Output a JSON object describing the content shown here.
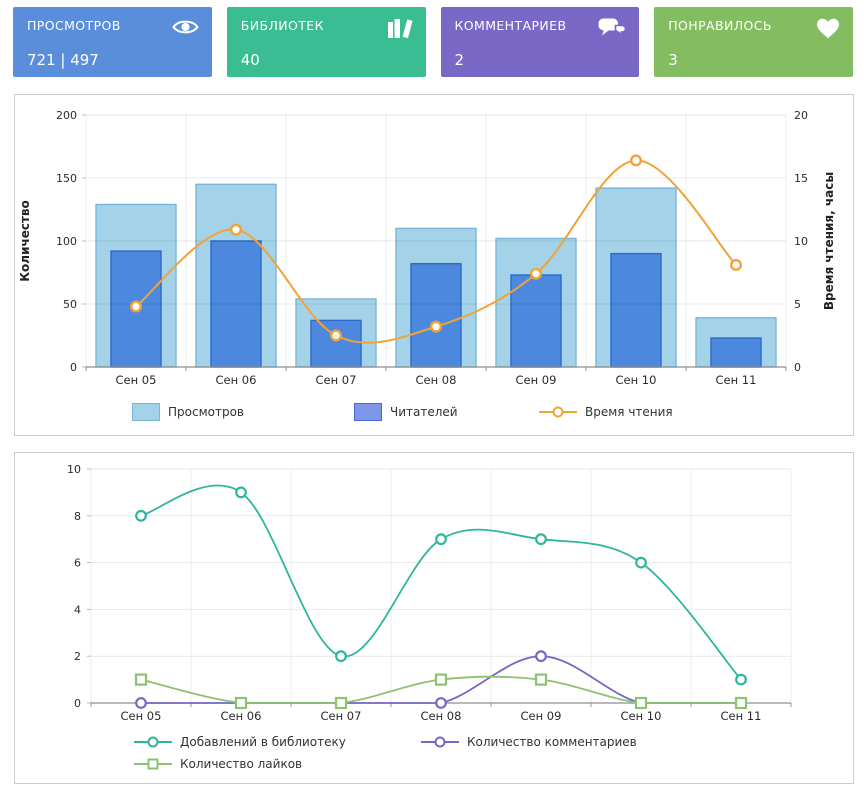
{
  "cards": [
    {
      "id": "views",
      "label": "ПРОСМОТРОВ",
      "value": "721 | 497",
      "color": "#5a8edb",
      "icon": "eye-icon"
    },
    {
      "id": "libraries",
      "label": "БИБЛИОТЕК",
      "value": "40",
      "color": "#3bbd93",
      "icon": "books-icon"
    },
    {
      "id": "comments",
      "label": "КОММЕНТАРИЕВ",
      "value": "2",
      "color": "#7a68c6",
      "icon": "chat-bubbles-icon"
    },
    {
      "id": "likes",
      "label": "ПОНРАВИЛОСЬ",
      "value": "3",
      "color": "#84bc62",
      "icon": "heart-icon"
    }
  ],
  "chart_data": [
    {
      "type": "bar",
      "subtype": "combo-bar-line",
      "categories": [
        "Сен 05",
        "Сен 06",
        "Сен 07",
        "Сен 08",
        "Сен 09",
        "Сен 10",
        "Сен 11"
      ],
      "left_axis": {
        "label": "Количество",
        "ticks": [
          0,
          50,
          100,
          150,
          200
        ],
        "range": [
          0,
          200
        ]
      },
      "right_axis": {
        "label": "Время чтения, часы",
        "ticks": [
          0,
          5,
          10,
          15,
          20
        ],
        "range": [
          0,
          20
        ]
      },
      "grid": true,
      "legend_position": "bottom",
      "series": [
        {
          "name": "Просмотров",
          "type": "bar",
          "axis": "left",
          "values": [
            129,
            145,
            54,
            110,
            102,
            142,
            39
          ],
          "fill": "#a4d3e9",
          "stroke": "#7ab5d8",
          "legend_fill": "#a4d3e9",
          "legend_stroke": "#7ab5d8"
        },
        {
          "name": "Читателей",
          "type": "bar",
          "axis": "left",
          "values": [
            92,
            100,
            37,
            82,
            73,
            90,
            23
          ],
          "fill": "#4c89de",
          "stroke": "#2d68cc",
          "legend_fill": "#7e96e8",
          "legend_stroke": "#4b69d6"
        },
        {
          "name": "Время чтения",
          "type": "line",
          "axis": "right",
          "values": [
            4.8,
            10.9,
            2.5,
            3.2,
            7.4,
            16.4,
            8.1
          ],
          "color": "#f2a237",
          "marker": "circle"
        }
      ]
    },
    {
      "type": "line",
      "categories": [
        "Сен 05",
        "Сен 06",
        "Сен 07",
        "Сен 08",
        "Сен 09",
        "Сен 10",
        "Сен 11"
      ],
      "y_axis": {
        "ticks": [
          0,
          2,
          4,
          6,
          8,
          10
        ],
        "range": [
          0,
          10
        ]
      },
      "grid": true,
      "legend_position": "bottom",
      "series": [
        {
          "name": "Добавлений в библиотеку",
          "values": [
            8,
            9,
            2,
            7,
            7,
            6,
            1
          ],
          "color": "#2eb69d",
          "marker": "circle"
        },
        {
          "name": "Количество комментариев",
          "values": [
            0,
            0,
            0,
            0,
            2,
            0,
            0
          ],
          "color": "#7668c4",
          "marker": "circle"
        },
        {
          "name": "Количество лайков",
          "values": [
            1,
            0,
            0,
            1,
            1,
            0,
            0
          ],
          "color": "#8cc272",
          "marker": "square"
        }
      ]
    }
  ]
}
